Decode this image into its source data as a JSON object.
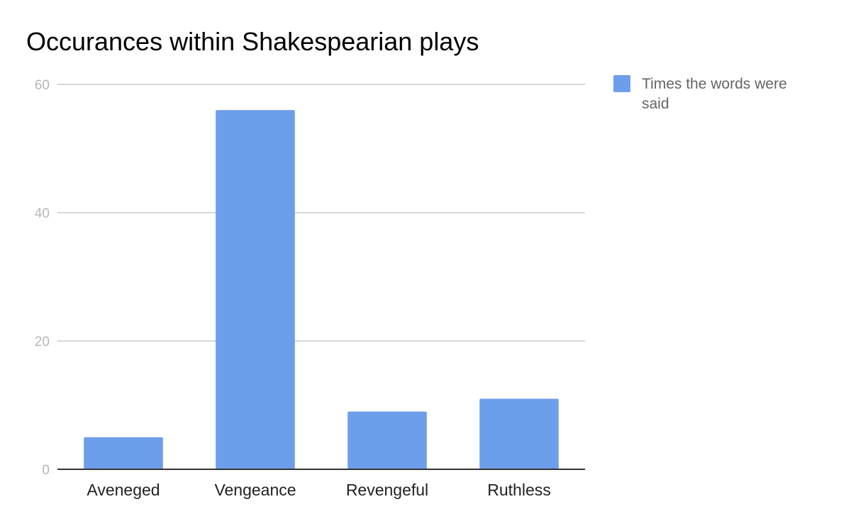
{
  "chart_data": {
    "type": "bar",
    "title": "Occurances within Shakespearian plays",
    "xlabel": "",
    "ylabel": "",
    "categories": [
      "Aveneged",
      "Vengeance",
      "Revengeful",
      "Ruthless"
    ],
    "series": [
      {
        "name": "Times the words were said",
        "values": [
          5,
          56,
          9,
          11
        ]
      }
    ],
    "ylim": [
      0,
      60
    ],
    "yticks": [
      "0",
      "20",
      "40",
      "60"
    ],
    "grid": true,
    "legend_position": "right",
    "colors": {
      "bar": "#6d9eeb",
      "grid": "#cccccc",
      "baseline": "#333333",
      "tick_label": "#b7b7b7"
    }
  }
}
